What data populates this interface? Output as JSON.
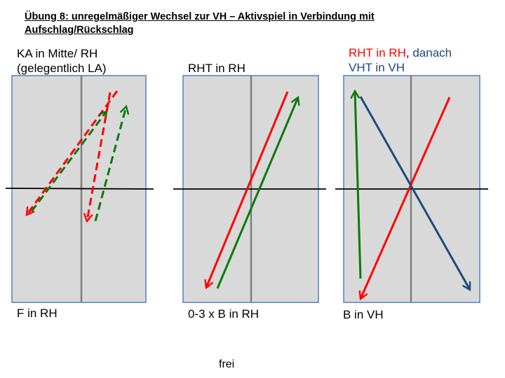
{
  "title_line1": "Übung 8: unregelmäßiger Wechsel zur VH – Aktivspiel in Verbindung mit",
  "title_line2": "Aufschlag/Rückschlag",
  "panels": [
    {
      "top_line1": "KA in Mitte/ RH",
      "top_line2": "(gelegentlich LA)",
      "bottom": "F in RH"
    },
    {
      "top_line1": "RHT in RH",
      "bottom": "0-3 x B in RH"
    },
    {
      "top_line1_red": "RHT in RH",
      "top_line1_sep": ", ",
      "top_line1_blue": "danach",
      "top_line2_blue": "VHT in VH",
      "bottom": "B in VH"
    }
  ],
  "footer": "frei",
  "colors": {
    "table_fill": "#d9d9d9",
    "table_border": "#4f81bd",
    "center_line": "#7f7f7f",
    "red": "#ff0000",
    "green": "#0a7a0a",
    "navy": "#1f497d"
  }
}
